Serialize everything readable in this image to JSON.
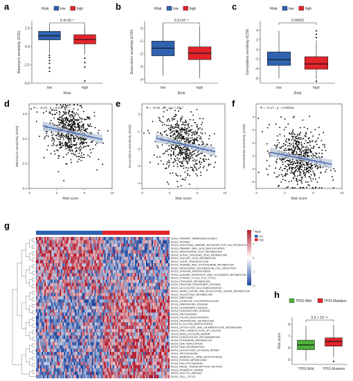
{
  "panel_letters": [
    "a",
    "b",
    "c",
    "d",
    "e",
    "f",
    "g",
    "h"
  ],
  "colors": {
    "low": "#2f62b0",
    "high": "#e2242b",
    "wt": "#4db13c",
    "mut": "#e2242b",
    "fit": "#3a64b4",
    "band": "#b8c4d8"
  },
  "chart_data": [
    {
      "id": "a",
      "type": "box",
      "legend_title": "Risk",
      "legend": [
        "low",
        "high"
      ],
      "categories": [
        "low",
        "high"
      ],
      "xlabel": "Risk",
      "ylabel": "Bleomycin sensitivity (IC50)",
      "ylim": [
        -5,
        3.5
      ],
      "yticks": [
        2.5,
        0.0,
        -2.5,
        -5.0
      ],
      "pvalue": "6.4×10⁻²",
      "boxes": [
        {
          "q1": 0.9,
          "med": 1.45,
          "q3": 2.05,
          "wlo": -0.9,
          "whi": 3.0,
          "out": [
            -1.2,
            -1.5,
            -1.9,
            -2.3,
            -2.9,
            -3.4
          ]
        },
        {
          "q1": 0.35,
          "med": 0.95,
          "q3": 1.6,
          "wlo": -1.1,
          "whi": 2.9,
          "out": [
            -1.6,
            -2.2,
            -2.8,
            -4.7
          ]
        }
      ]
    },
    {
      "id": "b",
      "type": "box",
      "legend_title": "Risk",
      "legend": [
        "low",
        "high"
      ],
      "categories": [
        "low",
        "high"
      ],
      "xlabel": "Risk",
      "ylabel": "Doxorubicin sensitivity (IC50)",
      "ylim": [
        -4.3,
        0.6
      ],
      "yticks": [
        0,
        -1,
        -2,
        -3,
        -4
      ],
      "pvalue": "6.3×10⁻³",
      "boxes": [
        {
          "q1": -2.15,
          "med": -1.55,
          "q3": -1.0,
          "wlo": -3.7,
          "whi": 0.3,
          "out": []
        },
        {
          "q1": -2.45,
          "med": -1.95,
          "q3": -1.45,
          "wlo": -3.9,
          "whi": 0.2,
          "out": []
        }
      ]
    },
    {
      "id": "c",
      "type": "box",
      "legend_title": "Risk",
      "legend": [
        "low",
        "high"
      ],
      "categories": [
        "low",
        "high"
      ],
      "xlabel": "Risk",
      "ylabel": "Gemcitabine sensitivity (IC50)",
      "ylim": [
        -7,
        6
      ],
      "yticks": [
        4,
        2,
        0,
        -2,
        -4,
        -6
      ],
      "pvalue": "0.00022",
      "boxes": [
        {
          "q1": -3.3,
          "med": -2.1,
          "q3": -0.5,
          "wlo": -6.0,
          "whi": 3.9,
          "out": []
        },
        {
          "q1": -4.1,
          "med": -3.0,
          "q3": -1.5,
          "wlo": -6.2,
          "whi": 1.9,
          "out": [
            2.5,
            3.2,
            3.9,
            -6.6
          ]
        }
      ]
    },
    {
      "id": "d",
      "type": "scatter",
      "annotation": "R = -0.24 , p = 8.8 × 10⁻⁹",
      "xlabel": "Risk score",
      "ylabel": "Bleomycin sensitivity (IC50)",
      "xlim": [
        -2,
        10
      ],
      "ylim": [
        -5,
        3.5
      ],
      "xticks": [
        -2,
        2,
        6,
        10
      ],
      "yticks": [
        2.5,
        0.0,
        -2.5,
        -5.0
      ],
      "fit": {
        "x0": -2,
        "y0": 1.6,
        "x1": 10,
        "y1": -0.3
      }
    },
    {
      "id": "e",
      "type": "scatter",
      "annotation": "R = -0.19 , p = 1.4 × 10⁻⁵",
      "xlabel": "Risk score",
      "ylabel": "Doxorubicin sensitivity (IC50)",
      "xlim": [
        -2,
        10
      ],
      "ylim": [
        -4.3,
        0.6
      ],
      "xticks": [
        -2,
        2,
        6,
        10
      ],
      "yticks": [
        0,
        -1,
        -2,
        -3,
        -4
      ],
      "fit": {
        "x0": -2,
        "y0": -1.2,
        "x1": 10,
        "y1": -2.3
      }
    },
    {
      "id": "f",
      "type": "scatter",
      "annotation": "R = -0.17 , p = 0.00011",
      "xlabel": "Risk score",
      "ylabel": "Gemcitabine sensitivity (IC50)",
      "xlim": [
        -2,
        10
      ],
      "ylim": [
        -7,
        6
      ],
      "xticks": [
        -2,
        2,
        6,
        10
      ],
      "yticks": [
        4,
        2,
        0,
        -2,
        -4,
        -6
      ],
      "fit": {
        "x0": -2,
        "y0": -1.0,
        "x1": 10,
        "y1": -3.6
      }
    },
    {
      "id": "g",
      "type": "heatmap",
      "annotation_title": "Risk",
      "annotation_legend": [
        "low",
        "high"
      ],
      "scale_ticks": [
        "2",
        "1",
        "0",
        "-1",
        "-2"
      ],
      "rows": [
        "KEGG_PRIMARY_IMMUNODEFICIENCY",
        "KEGG_ASTHMA",
        "KEGG_INTESTINAL_IMMUNE_NETWORK_FOR_IGA_PRODUCTION",
        "KEGG_PRIMARY_BILE_ACID_BIOSYNTHESIS",
        "KEGG_ARACHIDONIC_ACID_METABOLISM",
        "KEGG_ALPHA_LINOLENIC_ACID_METABOLISM",
        "KEGG_LINOLEIC_ACID_METABOLISM",
        "KEGG_TASTE_TRANSDUCTION",
        "KEGG_TAURINE_AND_HYPOTAURINE_METABOLISM",
        "KEGG_PATHOGENIC_ESCHERICHIA_COLI_INFECTION",
        "KEGG_STEROID_BIOSYNTHESIS",
        "KEGG_ALANINE_ASPARTATE_AND_GLUTAMATE_METABOLISM",
        "KEGG_CITRATE_CYCLE_TCA_CYCLE",
        "KEGG_PYRUVATE_METABOLISM",
        "KEGG_PENTOSE_PHOSPHATE_PATHWAY",
        "KEGG_GLYCOLYSIS_GLUCONEOGENESIS",
        "KEGG_AMINO_SUGAR_AND_NUCLEOTIDE_SUGAR_METABOLISM",
        "KEGG_GALACTOSE_METABOLISM",
        "KEGG_RIBOSOME",
        "KEGG_OXIDATIVE_PHOSPHORYLATION",
        "KEGG_PARKINSONS_DISEASE",
        "KEGG_ALZHEIMERS_DISEASE",
        "KEGG_HUNTINGTONS_DISEASE",
        "KEGG_PROTEASOME",
        "KEGG_FOLATE_BIOSYNTHESIS",
        "KEGG_PROPANOATE_METABOLISM",
        "KEGG_N_GLYCAN_BIOSYNTHESIS",
        "KEGG_GLYOXYLATE_AND_DICARBOXYLATE_METABOLISM",
        "KEGG_ONE_CARBON_POOL_BY_FOLATE",
        "KEGG_BASE_EXCISION_REPAIR",
        "KEGG_HOMOLOGOUS_RECOMBINATION",
        "KEGG_PYRIMIDINE_METABOLISM",
        "KEGG_DNA_REPLICATION",
        "KEGG_RNA_DEGRADATION",
        "KEGG_NUCLEOTIDE_EXCISION_REPAIR",
        "KEGG_SPLICEOSOME",
        "KEGG_AMINOACYL_TRNA_BIOSYNTHESIS",
        "KEGG_PURINE_METABOLISM",
        "KEGG_RNA_POLYMERASE",
        "KEGG_BASAL_TRANSCRIPTION_FACTORS",
        "KEGG_MISMATCH_REPAIR",
        "KEGG_OOCYTE_MEIOSIS",
        "KEGG_CELL_CYCLE"
      ]
    },
    {
      "id": "h",
      "type": "box",
      "legend_title": "",
      "legend": [
        "TP53 Wild",
        "TP53 Mutation"
      ],
      "categories": [
        "TP53 Wild",
        "TP53 Mutation"
      ],
      "xlabel": "",
      "ylabel": "Risk score",
      "ylim": [
        4.6,
        8.6
      ],
      "yticks": [
        8,
        7,
        6,
        5
      ],
      "pvalue": "5.6 × 10⁻¹⁴",
      "boxes": [
        {
          "q1": 5.85,
          "med": 6.25,
          "q3": 6.65,
          "wlo": 4.9,
          "whi": 7.85,
          "out": []
        },
        {
          "q1": 6.15,
          "med": 6.55,
          "q3": 6.85,
          "wlo": 5.2,
          "whi": 7.95,
          "out": [
            4.85
          ]
        }
      ]
    }
  ]
}
